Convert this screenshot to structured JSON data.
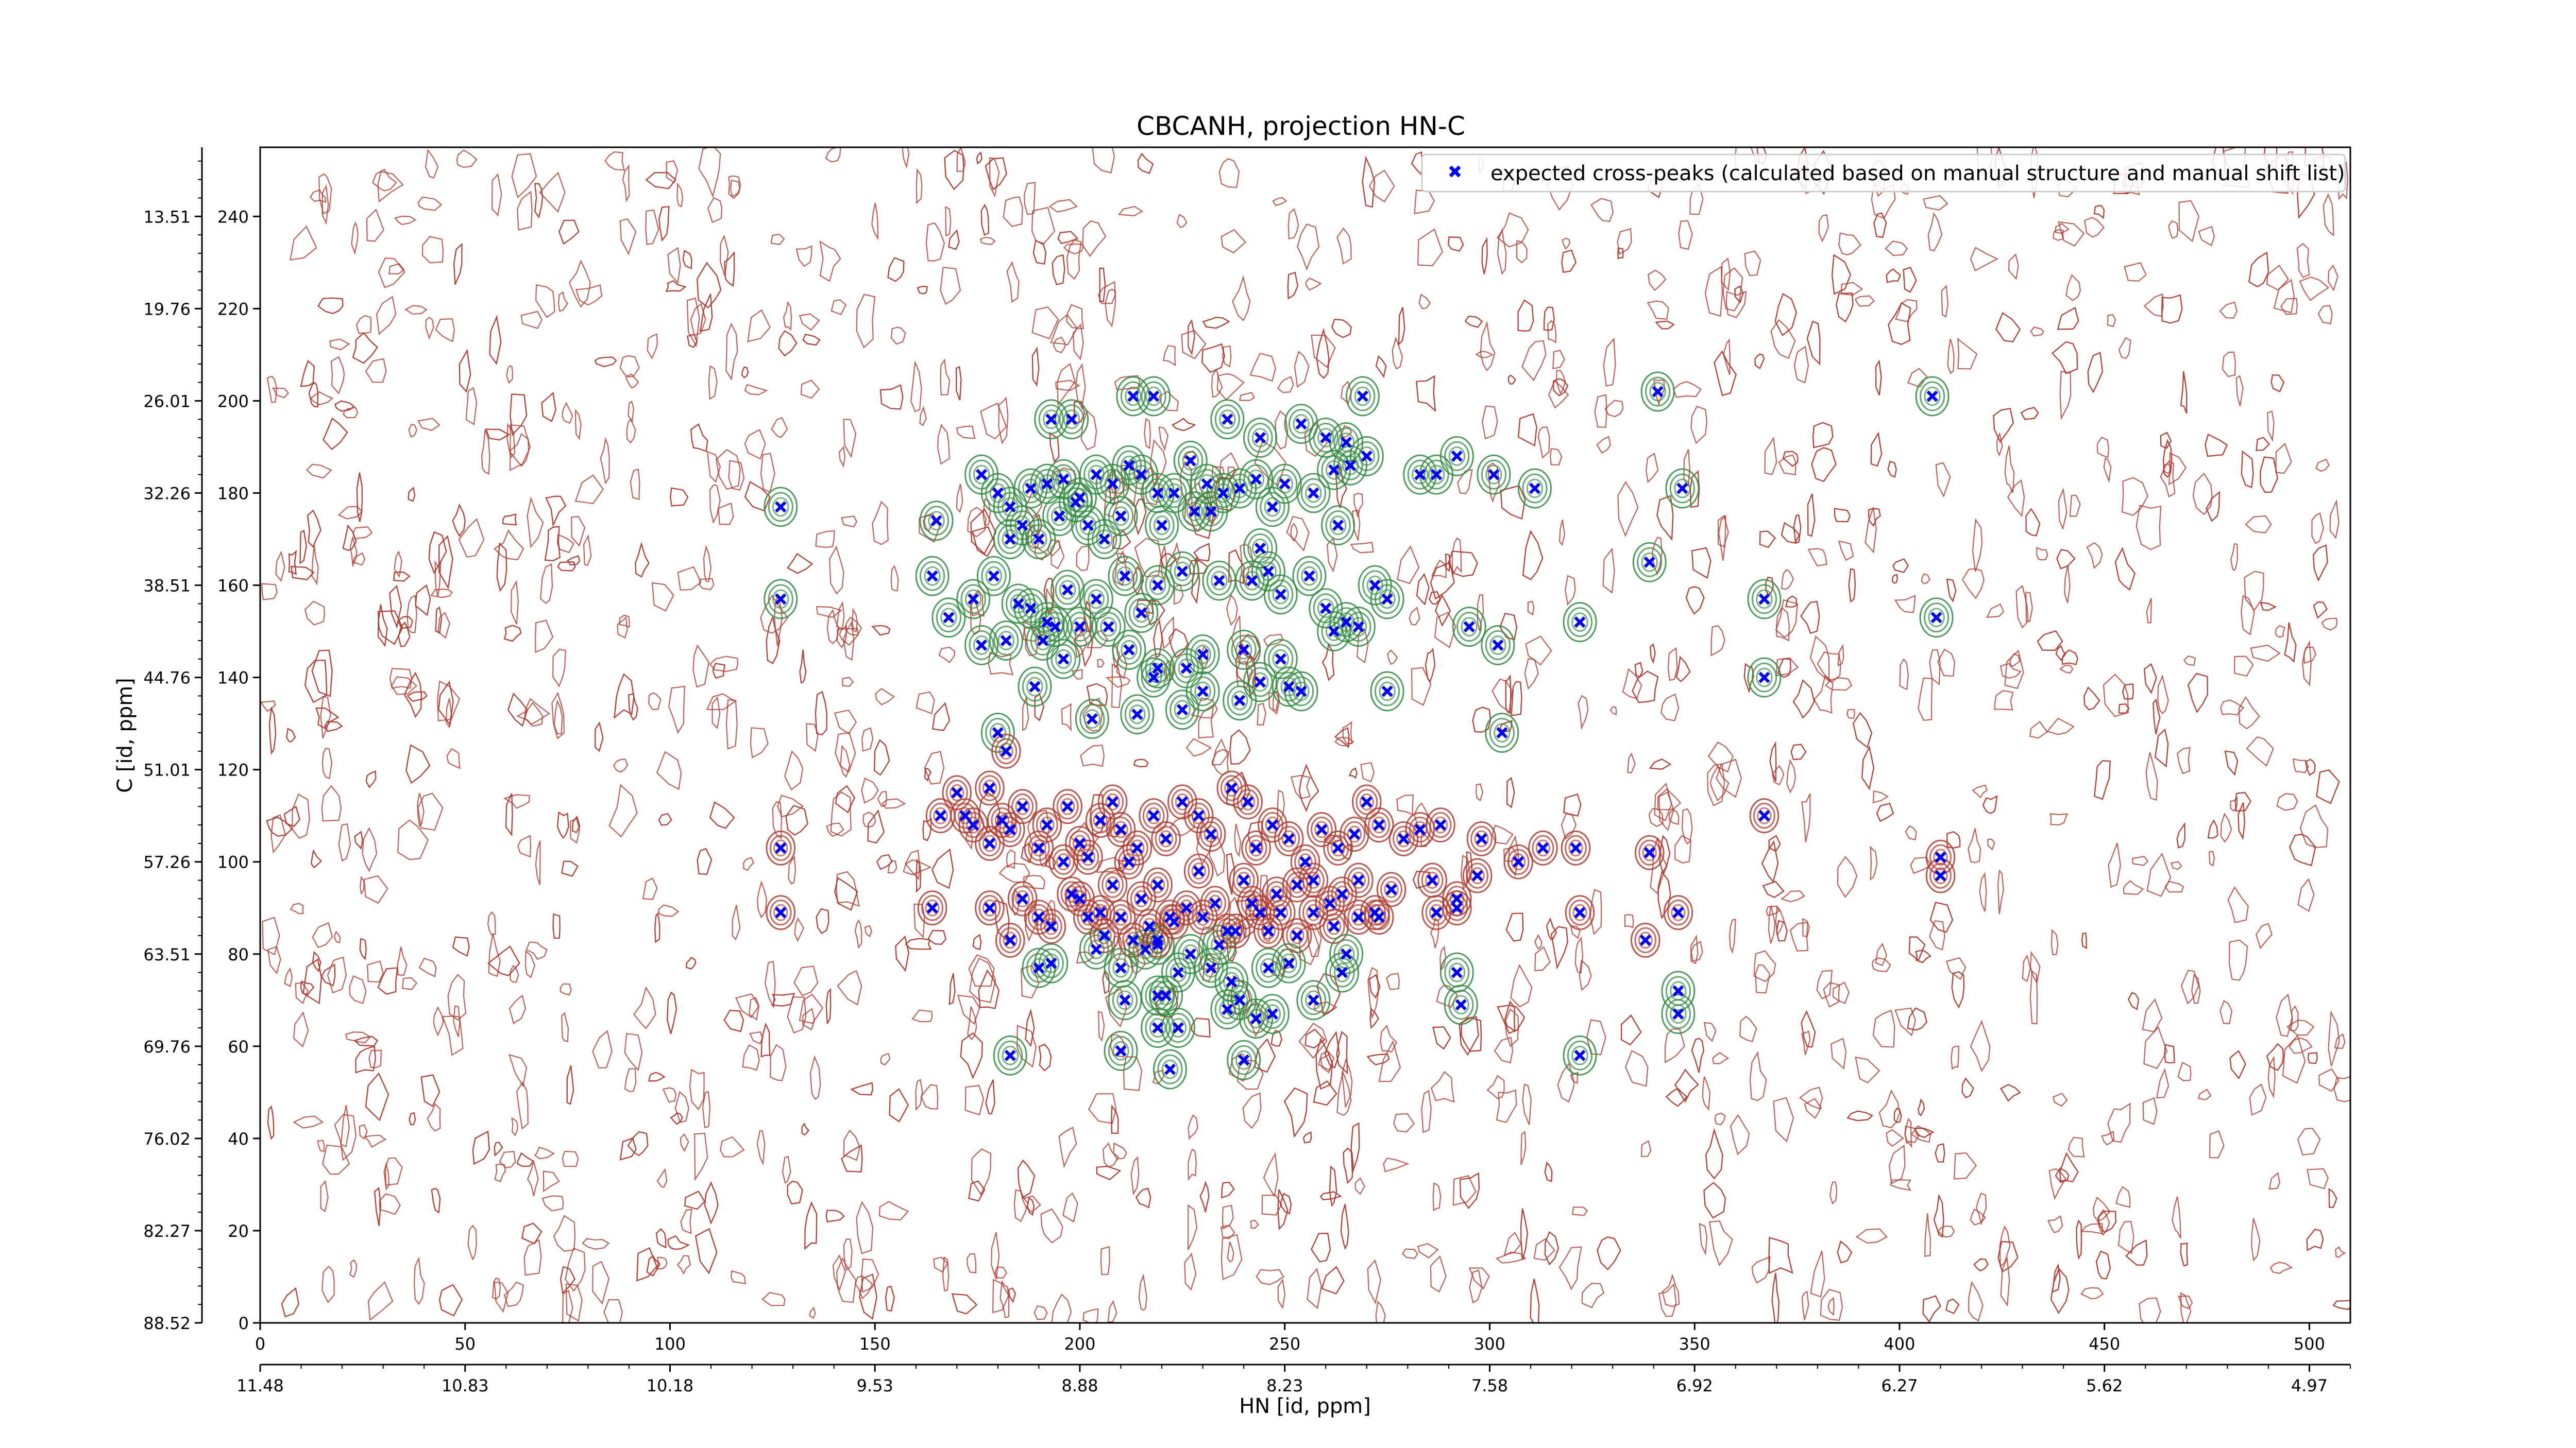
{
  "chart_data": {
    "type": "scatter",
    "title": "CBCANH, projection HN-C",
    "xlabel": "HN [id, ppm]",
    "ylabel": "C [id, ppm]",
    "xlim": [
      0,
      510
    ],
    "ylim": [
      0,
      255
    ],
    "x_ticks": [
      0,
      50,
      100,
      150,
      200,
      250,
      300,
      350,
      400,
      450,
      500
    ],
    "y_ticks": [
      0,
      20,
      40,
      60,
      80,
      100,
      120,
      140,
      160,
      180,
      200,
      220,
      240
    ],
    "x_ppm_tick_labels": [
      "11.48",
      "10.83",
      "10.18",
      "9.53",
      "8.88",
      "8.23",
      "7.58",
      "6.92",
      "6.27",
      "5.62",
      "4.97"
    ],
    "y_ppm_tick_labels": [
      "88.52",
      "82.27",
      "76.02",
      "69.76",
      "63.51",
      "57.26",
      "51.01",
      "44.76",
      "38.51",
      "32.26",
      "26.01",
      "19.76",
      "13.51"
    ],
    "legend": {
      "position": "top-right",
      "label": "expected cross-peaks (calculated based on manual structure and manual shift list)"
    },
    "colors": {
      "noise_contours": "#b03a2e",
      "positive_contours": "#2e8b3e",
      "marker": "#0000ff",
      "axes": "#000000"
    },
    "series": [
      {
        "name": "expected cross-peaks (calculated based on manual structure and manual shift list)",
        "marker": "x",
        "points": [
          [
            193,
            196
          ],
          [
            198,
            196
          ],
          [
            213,
            201
          ],
          [
            218,
            201
          ],
          [
            236,
            196
          ],
          [
            244,
            192
          ],
          [
            254,
            195
          ],
          [
            260,
            192
          ],
          [
            265,
            191
          ],
          [
            269,
            201
          ],
          [
            270,
            188
          ],
          [
            292,
            188
          ],
          [
            301,
            184
          ],
          [
            311,
            181
          ],
          [
            347,
            181
          ],
          [
            408,
            201
          ],
          [
            341,
            202
          ],
          [
            176,
            184
          ],
          [
            180,
            180
          ],
          [
            183,
            177
          ],
          [
            188,
            181
          ],
          [
            192,
            182
          ],
          [
            196,
            183
          ],
          [
            200,
            179
          ],
          [
            204,
            184
          ],
          [
            208,
            182
          ],
          [
            212,
            186
          ],
          [
            215,
            184
          ],
          [
            219,
            180
          ],
          [
            223,
            180
          ],
          [
            227,
            187
          ],
          [
            231,
            182
          ],
          [
            235,
            180
          ],
          [
            239,
            181
          ],
          [
            243,
            183
          ],
          [
            247,
            177
          ],
          [
            250,
            182
          ],
          [
            257,
            180
          ],
          [
            262,
            185
          ],
          [
            266,
            186
          ],
          [
            283,
            184
          ],
          [
            287,
            184
          ],
          [
            127,
            177
          ],
          [
            165,
            174
          ],
          [
            183,
            170
          ],
          [
            186,
            173
          ],
          [
            190,
            170
          ],
          [
            195,
            175
          ],
          [
            199,
            178
          ],
          [
            202,
            173
          ],
          [
            206,
            170
          ],
          [
            210,
            175
          ],
          [
            220,
            173
          ],
          [
            228,
            176
          ],
          [
            232,
            176
          ],
          [
            244,
            168
          ],
          [
            263,
            173
          ],
          [
            164,
            162
          ],
          [
            174,
            157
          ],
          [
            179,
            162
          ],
          [
            185,
            156
          ],
          [
            188,
            155
          ],
          [
            194,
            151
          ],
          [
            197,
            159
          ],
          [
            204,
            157
          ],
          [
            207,
            151
          ],
          [
            211,
            162
          ],
          [
            215,
            154
          ],
          [
            219,
            160
          ],
          [
            225,
            163
          ],
          [
            234,
            161
          ],
          [
            242,
            161
          ],
          [
            246,
            163
          ],
          [
            249,
            158
          ],
          [
            256,
            162
          ],
          [
            260,
            155
          ],
          [
            262,
            150
          ],
          [
            265,
            152
          ],
          [
            268,
            151
          ],
          [
            272,
            160
          ],
          [
            275,
            157
          ],
          [
            339,
            165
          ],
          [
            367,
            157
          ],
          [
            409,
            153
          ],
          [
            127,
            157
          ],
          [
            168,
            153
          ],
          [
            176,
            147
          ],
          [
            182,
            148
          ],
          [
            192,
            152
          ],
          [
            196,
            144
          ],
          [
            200,
            151
          ],
          [
            212,
            146
          ],
          [
            219,
            142
          ],
          [
            226,
            142
          ],
          [
            230,
            145
          ],
          [
            240,
            146
          ],
          [
            244,
            139
          ],
          [
            249,
            144
          ],
          [
            254,
            137
          ],
          [
            295,
            151
          ],
          [
            302,
            147
          ],
          [
            322,
            152
          ],
          [
            367,
            140
          ],
          [
            180,
            128
          ],
          [
            182,
            124
          ],
          [
            189,
            138
          ],
          [
            191,
            148
          ],
          [
            203,
            131
          ],
          [
            214,
            132
          ],
          [
            218,
            140
          ],
          [
            225,
            133
          ],
          [
            230,
            137
          ],
          [
            239,
            135
          ],
          [
            251,
            138
          ],
          [
            275,
            137
          ],
          [
            303,
            128
          ],
          [
            170,
            115
          ],
          [
            172,
            110
          ],
          [
            178,
            116
          ],
          [
            181,
            109
          ],
          [
            183,
            107
          ],
          [
            186,
            112
          ],
          [
            190,
            103
          ],
          [
            192,
            108
          ],
          [
            197,
            112
          ],
          [
            200,
            104
          ],
          [
            202,
            101
          ],
          [
            205,
            109
          ],
          [
            208,
            113
          ],
          [
            210,
            107
          ],
          [
            214,
            103
          ],
          [
            218,
            110
          ],
          [
            221,
            105
          ],
          [
            225,
            113
          ],
          [
            229,
            110
          ],
          [
            232,
            106
          ],
          [
            237,
            116
          ],
          [
            241,
            113
          ],
          [
            243,
            103
          ],
          [
            247,
            108
          ],
          [
            251,
            105
          ],
          [
            255,
            100
          ],
          [
            259,
            107
          ],
          [
            263,
            103
          ],
          [
            267,
            106
          ],
          [
            270,
            113
          ],
          [
            273,
            108
          ],
          [
            279,
            105
          ],
          [
            283,
            107
          ],
          [
            288,
            108
          ],
          [
            298,
            105
          ],
          [
            307,
            100
          ],
          [
            313,
            103
          ],
          [
            321,
            103
          ],
          [
            339,
            102
          ],
          [
            367,
            110
          ],
          [
            410,
            101
          ],
          [
            127,
            103
          ],
          [
            166,
            110
          ],
          [
            174,
            108
          ],
          [
            178,
            104
          ],
          [
            196,
            100
          ],
          [
            200,
            92
          ],
          [
            205,
            89
          ],
          [
            208,
            95
          ],
          [
            212,
            100
          ],
          [
            215,
            92
          ],
          [
            219,
            95
          ],
          [
            222,
            88
          ],
          [
            226,
            90
          ],
          [
            229,
            98
          ],
          [
            233,
            91
          ],
          [
            236,
            85
          ],
          [
            240,
            96
          ],
          [
            244,
            89
          ],
          [
            248,
            93
          ],
          [
            253,
            95
          ],
          [
            257,
            96
          ],
          [
            261,
            91
          ],
          [
            264,
            93
          ],
          [
            268,
            96
          ],
          [
            272,
            89
          ],
          [
            276,
            94
          ],
          [
            286,
            96
          ],
          [
            292,
            92
          ],
          [
            297,
            97
          ],
          [
            410,
            97
          ],
          [
            127,
            89
          ],
          [
            164,
            90
          ],
          [
            178,
            90
          ],
          [
            186,
            92
          ],
          [
            190,
            88
          ],
          [
            193,
            86
          ],
          [
            198,
            93
          ],
          [
            202,
            88
          ],
          [
            206,
            84
          ],
          [
            210,
            88
          ],
          [
            213,
            83
          ],
          [
            217,
            86
          ],
          [
            219,
            82
          ],
          [
            223,
            87
          ],
          [
            227,
            80
          ],
          [
            230,
            88
          ],
          [
            234,
            82
          ],
          [
            238,
            85
          ],
          [
            242,
            91
          ],
          [
            246,
            85
          ],
          [
            249,
            89
          ],
          [
            253,
            84
          ],
          [
            257,
            89
          ],
          [
            262,
            86
          ],
          [
            265,
            80
          ],
          [
            268,
            88
          ],
          [
            273,
            88
          ],
          [
            287,
            89
          ],
          [
            292,
            90
          ],
          [
            322,
            89
          ],
          [
            338,
            83
          ],
          [
            346,
            89
          ],
          [
            183,
            83
          ],
          [
            190,
            77
          ],
          [
            193,
            78
          ],
          [
            204,
            81
          ],
          [
            210,
            77
          ],
          [
            216,
            81
          ],
          [
            219,
            83
          ],
          [
            224,
            76
          ],
          [
            232,
            77
          ],
          [
            237,
            74
          ],
          [
            246,
            77
          ],
          [
            251,
            78
          ],
          [
            264,
            76
          ],
          [
            292,
            76
          ],
          [
            346,
            72
          ],
          [
            211,
            70
          ],
          [
            219,
            71
          ],
          [
            221,
            71
          ],
          [
            236,
            68
          ],
          [
            239,
            70
          ],
          [
            243,
            66
          ],
          [
            247,
            67
          ],
          [
            257,
            70
          ],
          [
            293,
            69
          ],
          [
            346,
            67
          ],
          [
            183,
            58
          ],
          [
            210,
            59
          ],
          [
            219,
            64
          ],
          [
            224,
            64
          ],
          [
            240,
            57
          ],
          [
            322,
            58
          ],
          [
            222,
            55
          ]
        ]
      }
    ]
  }
}
